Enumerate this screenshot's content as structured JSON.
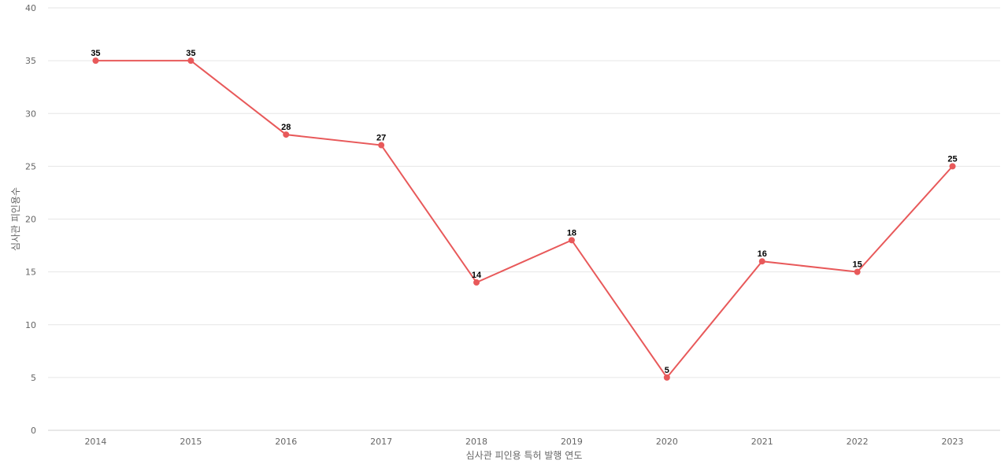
{
  "chart_data": {
    "type": "line",
    "title": "",
    "xlabel": "심사관 피인용 특허 발행 연도",
    "ylabel": "심사관 피인용수",
    "categories": [
      "2014",
      "2015",
      "2016",
      "2017",
      "2018",
      "2019",
      "2020",
      "2021",
      "2022",
      "2023"
    ],
    "series": [
      {
        "values": [
          35,
          35,
          28,
          27,
          14,
          18,
          5,
          16,
          15,
          25
        ],
        "color": "#e8595a"
      }
    ],
    "ylim": [
      0,
      40
    ],
    "yticks": [
      "0",
      "5",
      "10",
      "15",
      "20",
      "25",
      "30",
      "35",
      "40"
    ],
    "grid": true,
    "data_labels": true
  }
}
